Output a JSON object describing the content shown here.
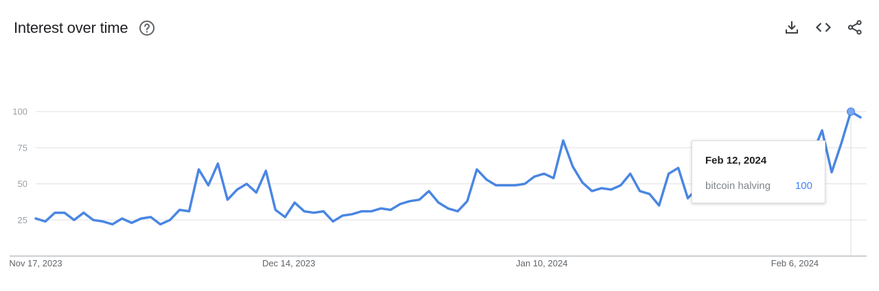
{
  "header": {
    "title": "Interest over time",
    "help_icon": "help-circle-icon"
  },
  "actions": [
    {
      "name": "download-button",
      "icon": "download-icon"
    },
    {
      "name": "embed-button",
      "icon": "code-icon"
    },
    {
      "name": "share-button",
      "icon": "share-icon"
    }
  ],
  "colors": {
    "line": "#4a86e2",
    "grid": "#e0e0e0",
    "axis": "#9aa0a6"
  },
  "chart_data": {
    "type": "line",
    "ylim": [
      0,
      100
    ],
    "yticks": [
      25,
      50,
      75,
      100
    ],
    "x_start": "Nov 17, 2023",
    "x_end": "Feb 13, 2024",
    "x_tick_labels": [
      "Nov 17, 2023",
      "Dec 14, 2023",
      "Jan 10, 2024",
      "Feb 6, 2024"
    ],
    "series": [
      {
        "name": "bitcoin halving",
        "values": [
          26,
          24,
          30,
          30,
          25,
          30,
          25,
          24,
          22,
          26,
          23,
          26,
          27,
          22,
          25,
          32,
          31,
          60,
          49,
          64,
          39,
          46,
          50,
          44,
          59,
          32,
          27,
          37,
          31,
          30,
          31,
          24,
          28,
          29,
          31,
          31,
          33,
          32,
          36,
          38,
          39,
          45,
          37,
          33,
          31,
          38,
          60,
          53,
          49,
          49,
          49,
          50,
          55,
          57,
          54,
          80,
          62,
          51,
          45,
          47,
          46,
          49,
          57,
          45,
          43,
          35,
          57,
          61,
          40,
          47,
          44,
          44,
          49,
          61,
          52,
          45,
          45,
          48,
          64,
          55,
          57,
          71,
          87,
          58,
          78,
          100,
          96
        ]
      }
    ],
    "highlight_index": 85,
    "tooltip": {
      "date": "Feb 12, 2024",
      "term": "bitcoin halving",
      "value": "100"
    }
  }
}
